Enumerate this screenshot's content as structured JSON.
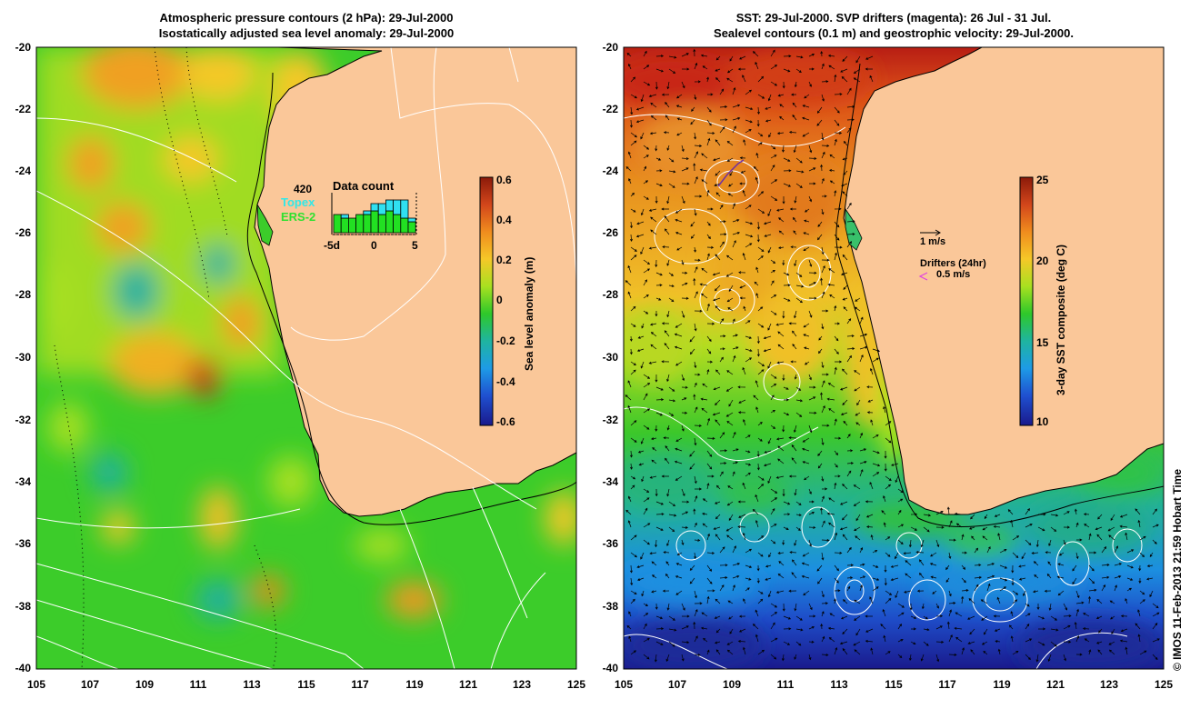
{
  "left_panel": {
    "title_line1": "Atmospheric pressure contours (2 hPa): 29-Jul-2000",
    "title_line2": "Isostatically adjusted sea level anomaly: 29-Jul-2000",
    "colorbar": {
      "label": "Sea level anomaly (m)",
      "ticks": [
        "0.6",
        "0.4",
        "0.2",
        "0",
        "-0.2",
        "-0.4",
        "-0.6"
      ],
      "colors": [
        "#8b1a0a",
        "#d2461b",
        "#f08c1e",
        "#f5c828",
        "#a8e020",
        "#2ec82a",
        "#1fb4a0",
        "#1e9be6",
        "#1f50d0",
        "#1a1a8c"
      ]
    },
    "inset": {
      "title": "Data count",
      "total": "420",
      "legend_topex": "Topex",
      "legend_ers": "ERS-2",
      "x_ticks": [
        "-5d",
        "0",
        "5"
      ],
      "bars_green": [
        5,
        4,
        4,
        5,
        5,
        6,
        5,
        6,
        5,
        4,
        3
      ],
      "bars_cyan": [
        0,
        1,
        0,
        0,
        1,
        2,
        3,
        3,
        4,
        5,
        1
      ]
    }
  },
  "right_panel": {
    "title_line1": "SST: 29-Jul-2000. SVP drifters (magenta): 26 Jul - 31 Jul.",
    "title_line2": "Sealevel contours (0.1 m) and geostrophic velocity: 29-Jul-2000.",
    "colorbar": {
      "label": "3-day SST composite (deg C)",
      "ticks": [
        "25",
        "20",
        "15",
        "10"
      ],
      "colors": [
        "#8b1a0a",
        "#d2461b",
        "#f08c1e",
        "#f5c828",
        "#a8e020",
        "#2ec82a",
        "#1fb4a0",
        "#1e9be6",
        "#1f50d0",
        "#1a1a8c"
      ]
    },
    "velocity_scale": "1 m/s",
    "drifters_label": "Drifters (24hr)",
    "drifters_scale": "0.5 m/s"
  },
  "axes": {
    "lat_ticks": [
      "-20",
      "-22",
      "-24",
      "-26",
      "-28",
      "-30",
      "-32",
      "-34",
      "-36",
      "-38",
      "-40"
    ],
    "lon_ticks": [
      "105",
      "107",
      "109",
      "111",
      "113",
      "115",
      "117",
      "119",
      "121",
      "123",
      "125"
    ]
  },
  "credit": "© IMOS 11-Feb-2013 21:59 Hobart Time",
  "colors": {
    "land": "#fac799",
    "ocean_green": "#38cc2a",
    "contour": "#ffffff"
  }
}
